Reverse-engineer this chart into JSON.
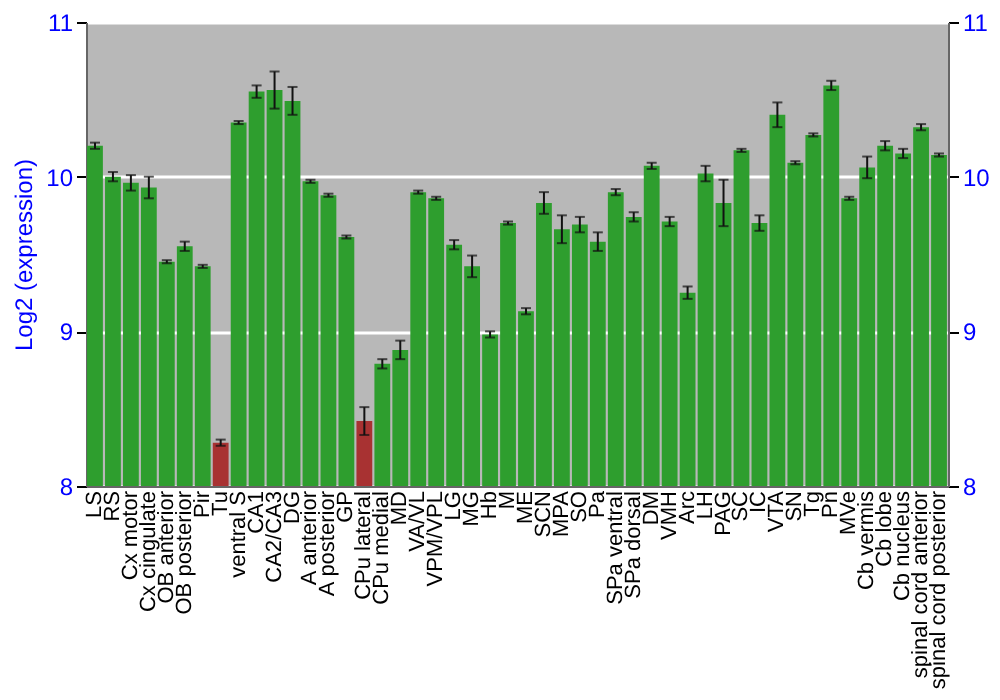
{
  "chart_data": {
    "type": "bar",
    "ylabel": "Log2 (expression)",
    "categories": [
      "LS",
      "RS",
      "Cx motor",
      "Cx cingulate",
      "OB anterior",
      "OB posterior",
      "Pir",
      "Tu",
      "ventral S",
      "CA1",
      "CA2/CA3",
      "DG",
      "A anterior",
      "A posterior",
      "GP",
      "CPu lateral",
      "CPu medial",
      "MD",
      "VA/VL",
      "VPM/VPL",
      "LG",
      "MG",
      "Hb",
      "M",
      "ME",
      "SCN",
      "MPA",
      "SO",
      "Pa",
      "SPa ventral",
      "SPa dorsal",
      "DM",
      "VMH",
      "Arc",
      "LH",
      "PAG",
      "SC",
      "IC",
      "VTA",
      "SN",
      "Tg",
      "Pn",
      "MVe",
      "Cb vermis",
      "Cb lobe",
      "Cb nucleus",
      "spinal cord anterior",
      "spinal cord posterior"
    ],
    "values": [
      10.2,
      10.0,
      9.96,
      9.93,
      9.45,
      9.55,
      9.42,
      8.28,
      10.35,
      10.55,
      10.56,
      10.49,
      9.97,
      9.88,
      9.61,
      8.42,
      8.79,
      8.88,
      9.9,
      9.86,
      9.56,
      9.42,
      8.98,
      9.7,
      9.13,
      9.83,
      9.66,
      9.69,
      9.58,
      9.9,
      9.74,
      10.07,
      9.71,
      9.25,
      10.02,
      9.83,
      10.17,
      9.7,
      10.4,
      10.09,
      10.27,
      10.59,
      9.86,
      10.06,
      10.2,
      10.15,
      10.32,
      10.14
    ],
    "errors": [
      0.02,
      0.03,
      0.05,
      0.07,
      0.01,
      0.03,
      0.01,
      0.02,
      0.01,
      0.04,
      0.12,
      0.09,
      0.01,
      0.01,
      0.01,
      0.09,
      0.03,
      0.06,
      0.01,
      0.01,
      0.03,
      0.07,
      0.02,
      0.01,
      0.02,
      0.07,
      0.09,
      0.05,
      0.06,
      0.02,
      0.03,
      0.02,
      0.03,
      0.04,
      0.05,
      0.15,
      0.01,
      0.05,
      0.08,
      0.01,
      0.01,
      0.03,
      0.01,
      0.07,
      0.03,
      0.03,
      0.02,
      0.01
    ],
    "colors": [
      "#2e9e2e",
      "#2e9e2e",
      "#2e9e2e",
      "#2e9e2e",
      "#2e9e2e",
      "#2e9e2e",
      "#2e9e2e",
      "#a83232",
      "#2e9e2e",
      "#2e9e2e",
      "#2e9e2e",
      "#2e9e2e",
      "#2e9e2e",
      "#2e9e2e",
      "#2e9e2e",
      "#a83232",
      "#2e9e2e",
      "#2e9e2e",
      "#2e9e2e",
      "#2e9e2e",
      "#2e9e2e",
      "#2e9e2e",
      "#2e9e2e",
      "#2e9e2e",
      "#2e9e2e",
      "#2e9e2e",
      "#2e9e2e",
      "#2e9e2e",
      "#2e9e2e",
      "#2e9e2e",
      "#2e9e2e",
      "#2e9e2e",
      "#2e9e2e",
      "#2e9e2e",
      "#2e9e2e",
      "#2e9e2e",
      "#2e9e2e",
      "#2e9e2e",
      "#2e9e2e",
      "#2e9e2e",
      "#2e9e2e",
      "#2e9e2e",
      "#2e9e2e",
      "#2e9e2e",
      "#2e9e2e",
      "#2e9e2e",
      "#2e9e2e",
      "#2e9e2e"
    ],
    "ylim": [
      8,
      11
    ],
    "yticks": [
      8,
      9,
      10,
      11
    ],
    "y2lim": [
      8,
      11
    ],
    "y2ticks": [
      8,
      9,
      10,
      11
    ],
    "grid": "y"
  }
}
